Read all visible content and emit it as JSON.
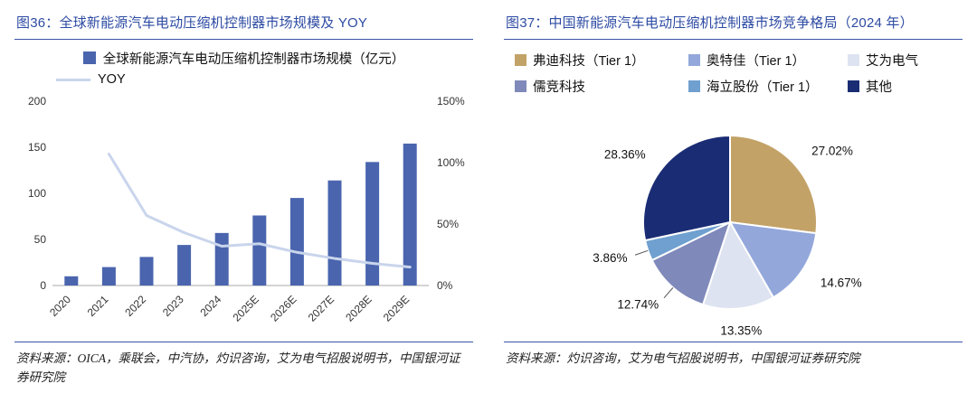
{
  "page": {
    "background": "#ffffff",
    "accent_blue": "#2d4ba3"
  },
  "left_panel": {
    "title": "图36：全球新能源汽车电动压缩机控制器市场规模及 YOY",
    "source": "资料来源：OICA，乘联会，中汽协，灼识咨询，艾为电气招股说明书，中国银河证券研究院"
  },
  "right_panel": {
    "title": "图37：中国新能源汽车电动压缩机控制器市场竞争格局（2024 年）",
    "source": "资料来源：灼识咨询，艾为电气招股说明书，中国银河证券研究院"
  },
  "chart_data": [
    {
      "type": "bar",
      "title": "全球新能源汽车电动压缩机控制器市场规模及 YOY",
      "categories": [
        "2020",
        "2021",
        "2022",
        "2023",
        "2024",
        "2025E",
        "2026E",
        "2027E",
        "2028E",
        "2029E"
      ],
      "series": [
        {
          "name": "全球新能源汽车电动压缩机控制器市场规模（亿元）",
          "type": "bar",
          "axis": "left",
          "color": "#4a65ae",
          "values": [
            10,
            20,
            31,
            44,
            57,
            76,
            95,
            114,
            134,
            154
          ]
        },
        {
          "name": "YOY",
          "type": "line",
          "axis": "right",
          "color": "#c9d5ec",
          "values": [
            null,
            107,
            57,
            43,
            32,
            34,
            27,
            22,
            18,
            15
          ]
        }
      ],
      "y_left": {
        "ticks": [
          0,
          50,
          100,
          150,
          200
        ],
        "max": 200
      },
      "y_right": {
        "ticks": [
          "0%",
          "50%",
          "100%",
          "150%"
        ],
        "tick_values": [
          0,
          50,
          100,
          150
        ],
        "max": 150
      },
      "grid": false,
      "legend_position": "top"
    },
    {
      "type": "pie",
      "title": "中国新能源汽车电动压缩机控制器市场竞争格局（2024 年）",
      "slices": [
        {
          "name": "弗迪科技（Tier 1）",
          "value": 27.02,
          "label": "27.02%",
          "color": "#c3a268"
        },
        {
          "name": "奥特佳（Tier 1）",
          "value": 14.67,
          "label": "14.67%",
          "color": "#93a7db"
        },
        {
          "name": "艾为电气",
          "value": 13.35,
          "label": "13.35%",
          "color": "#dde3f0"
        },
        {
          "name": "儒竞科技",
          "value": 12.74,
          "label": "12.74%",
          "color": "#7f89ba"
        },
        {
          "name": "海立股份（Tier 1）",
          "value": 3.86,
          "label": "3.86%",
          "color": "#6fa0cf"
        },
        {
          "name": "其他",
          "value": 28.36,
          "label": "28.36%",
          "color": "#1a2c74"
        }
      ],
      "start_angle_deg": 0,
      "direction": "clockwise",
      "legend_position": "top"
    }
  ]
}
